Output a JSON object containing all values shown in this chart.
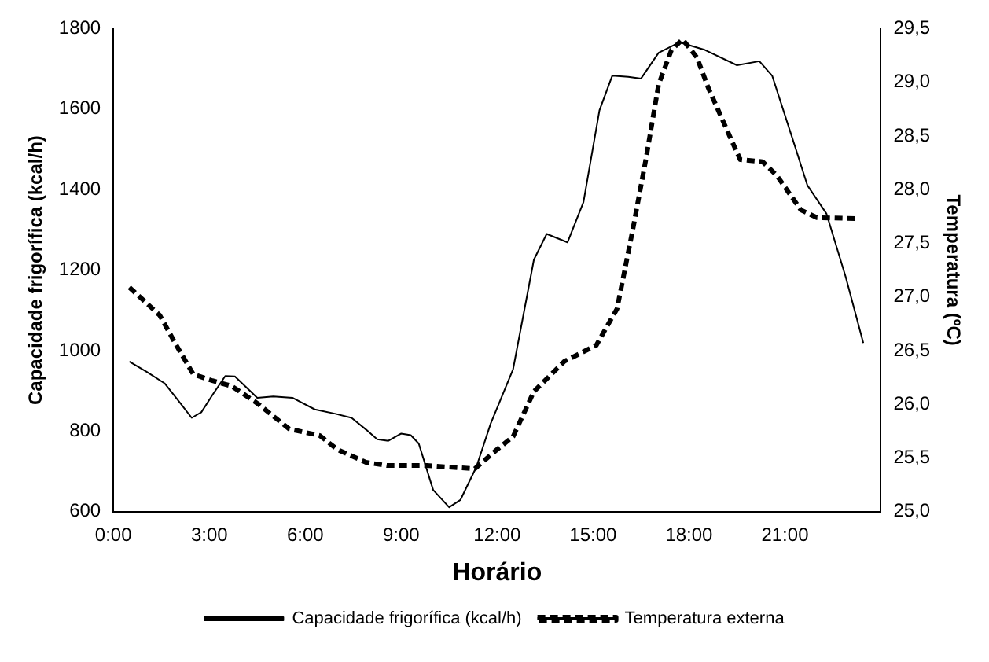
{
  "chart_data": {
    "type": "line",
    "xlabel": "Horário",
    "ylabel": "Capacidade frigorífica (kcal/h)",
    "y2label": "Temperatura (ºC)",
    "xlim": [
      0,
      24
    ],
    "xticks": [
      {
        "value": 0,
        "label": "0:00"
      },
      {
        "value": 3,
        "label": "3:00"
      },
      {
        "value": 6,
        "label": "6:00"
      },
      {
        "value": 9,
        "label": "9:00"
      },
      {
        "value": 12,
        "label": "12:00"
      },
      {
        "value": 15,
        "label": "15:00"
      },
      {
        "value": 18,
        "label": "18:00"
      },
      {
        "value": 21,
        "label": "21:00"
      }
    ],
    "ylim": [
      600,
      1800
    ],
    "yticks": [
      600,
      800,
      1000,
      1200,
      1400,
      1600,
      1800
    ],
    "y2lim": [
      25,
      29.5
    ],
    "y2ticks": [
      {
        "value": 25,
        "label": "25,0"
      },
      {
        "value": 25.5,
        "label": "25,5"
      },
      {
        "value": 26,
        "label": "26,0"
      },
      {
        "value": 26.5,
        "label": "26,5"
      },
      {
        "value": 27,
        "label": "27,0"
      },
      {
        "value": 27.5,
        "label": "27,5"
      },
      {
        "value": 28,
        "label": "28,0"
      },
      {
        "value": 28.5,
        "label": "28,5"
      },
      {
        "value": 29,
        "label": "29,0"
      },
      {
        "value": 29.5,
        "label": "29,5"
      }
    ],
    "grid": false,
    "legend": "bottom",
    "marker": "none",
    "series": [
      {
        "name": "Capacidade frigorífica (kcal/h)",
        "color": "#000000",
        "line_style": "solid",
        "x": [
          0.5,
          1.05,
          1.6,
          2.1,
          2.45,
          2.75,
          3.1,
          3.5,
          3.8,
          4.5,
          5.0,
          5.6,
          6.3,
          6.95,
          7.45,
          7.9,
          8.25,
          8.6,
          9.0,
          9.3,
          9.55,
          10.0,
          10.5,
          10.85,
          11.35,
          11.8,
          12.5,
          13.15,
          13.55,
          14.2,
          14.7,
          15.2,
          15.6,
          16.1,
          16.5,
          17.05,
          17.7,
          18.5,
          19.5,
          20.2,
          20.6,
          21.3,
          21.7,
          22.3,
          22.9,
          23.45
        ],
        "values": [
          973,
          947,
          919,
          869,
          833,
          847,
          890,
          937,
          936,
          883,
          886,
          883,
          854,
          843,
          833,
          804,
          780,
          776,
          794,
          790,
          769,
          654,
          611,
          629,
          711,
          819,
          954,
          1226,
          1290,
          1269,
          1369,
          1597,
          1683,
          1680,
          1676,
          1740,
          1766,
          1747,
          1709,
          1719,
          1683,
          1511,
          1411,
          1340,
          1183,
          1019
        ]
      },
      {
        "name": "Temperatura externa",
        "color": "#000000",
        "line_style": "dashed",
        "axis": "y2",
        "x": [
          0.5,
          1.45,
          1.95,
          2.5,
          3.1,
          3.7,
          4.5,
          5.5,
          6.45,
          7.0,
          7.9,
          8.55,
          9.8,
          11.3,
          12.0,
          12.5,
          13.15,
          14.1,
          15.1,
          15.75,
          16.25,
          16.65,
          17.05,
          17.45,
          17.8,
          18.25,
          18.6,
          19.3,
          19.6,
          20.3,
          20.75,
          21.5,
          22.0,
          23.2
        ],
        "values": [
          27.09,
          26.83,
          26.56,
          26.28,
          26.22,
          26.17,
          26.01,
          25.77,
          25.71,
          25.58,
          25.46,
          25.43,
          25.43,
          25.4,
          25.58,
          25.7,
          26.12,
          26.4,
          26.55,
          26.89,
          27.64,
          28.28,
          28.98,
          29.3,
          29.4,
          29.23,
          28.95,
          28.48,
          28.28,
          28.26,
          28.13,
          27.81,
          27.74,
          27.73
        ]
      }
    ]
  }
}
